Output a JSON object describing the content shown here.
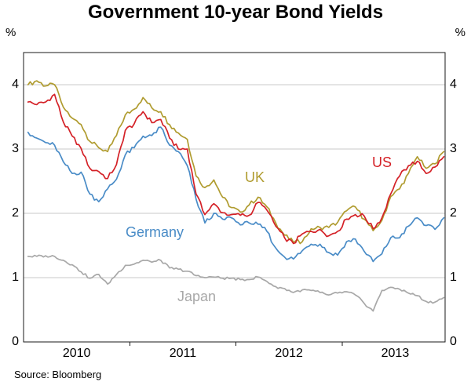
{
  "chart_data": {
    "type": "line",
    "title": "Government 10-year Bond Yields",
    "ylabel_left": "%",
    "ylabel_right": "%",
    "ylim": [
      0,
      4.5
    ],
    "yticks": [
      0,
      1,
      2,
      3,
      4
    ],
    "xlim": [
      2010.0,
      2013.97
    ],
    "xtick_labels": [
      "2010",
      "2011",
      "2012",
      "2013"
    ],
    "xtick_label_positions": [
      2010.5,
      2011.5,
      2012.5,
      2013.5
    ],
    "x_boundary_ticks": [
      2011,
      2012,
      2013
    ],
    "grid": "horizontal",
    "legend": "inline-labels",
    "source": "Source: Bloomberg",
    "x": [
      2010.042,
      2010.125,
      2010.208,
      2010.292,
      2010.375,
      2010.458,
      2010.542,
      2010.625,
      2010.708,
      2010.792,
      2010.875,
      2010.958,
      2011.042,
      2011.125,
      2011.208,
      2011.292,
      2011.375,
      2011.458,
      2011.542,
      2011.625,
      2011.708,
      2011.792,
      2011.875,
      2011.958,
      2012.042,
      2012.125,
      2012.208,
      2012.292,
      2012.375,
      2012.458,
      2012.542,
      2012.625,
      2012.708,
      2012.792,
      2012.875,
      2012.958,
      2013.042,
      2013.125,
      2013.208,
      2013.292,
      2013.375,
      2013.458,
      2013.542,
      2013.625,
      2013.708,
      2013.792,
      2013.875,
      2013.958
    ],
    "series": [
      {
        "name": "UK",
        "color": "#b09c30",
        "values": [
          4.0,
          4.06,
          3.98,
          4.0,
          3.65,
          3.48,
          3.38,
          3.12,
          3.02,
          2.96,
          3.21,
          3.53,
          3.62,
          3.8,
          3.64,
          3.58,
          3.38,
          3.25,
          3.15,
          2.58,
          2.4,
          2.52,
          2.25,
          2.09,
          2.02,
          2.13,
          2.25,
          2.1,
          1.85,
          1.66,
          1.55,
          1.56,
          1.76,
          1.78,
          1.78,
          1.86,
          2.04,
          2.1,
          1.91,
          1.73,
          1.89,
          2.26,
          2.38,
          2.62,
          2.88,
          2.7,
          2.77,
          2.96
        ]
      },
      {
        "name": "US",
        "color": "#d42127",
        "values": [
          3.73,
          3.69,
          3.73,
          3.85,
          3.42,
          3.2,
          3.01,
          2.7,
          2.65,
          2.54,
          2.76,
          3.29,
          3.39,
          3.58,
          3.41,
          3.46,
          3.17,
          3.0,
          3.0,
          2.3,
          1.98,
          2.15,
          2.01,
          1.98,
          1.97,
          1.97,
          2.17,
          2.05,
          1.8,
          1.62,
          1.53,
          1.68,
          1.72,
          1.75,
          1.65,
          1.72,
          1.91,
          1.98,
          1.96,
          1.76,
          1.93,
          2.3,
          2.58,
          2.74,
          2.81,
          2.62,
          2.72,
          2.88
        ]
      },
      {
        "name": "Germany",
        "color": "#4a8cc7",
        "values": [
          3.26,
          3.17,
          3.1,
          3.06,
          2.8,
          2.62,
          2.64,
          2.3,
          2.18,
          2.38,
          2.53,
          2.91,
          3.02,
          3.2,
          3.21,
          3.34,
          3.06,
          2.96,
          2.74,
          2.22,
          1.85,
          2.0,
          1.91,
          1.93,
          1.82,
          1.85,
          1.83,
          1.72,
          1.46,
          1.32,
          1.29,
          1.42,
          1.52,
          1.52,
          1.39,
          1.35,
          1.56,
          1.6,
          1.41,
          1.25,
          1.37,
          1.62,
          1.62,
          1.8,
          1.93,
          1.81,
          1.75,
          1.93
        ]
      },
      {
        "name": "Japan",
        "color": "#a8a8a8",
        "values": [
          1.33,
          1.33,
          1.34,
          1.33,
          1.27,
          1.2,
          1.09,
          0.99,
          1.05,
          0.9,
          1.05,
          1.19,
          1.21,
          1.27,
          1.24,
          1.27,
          1.15,
          1.13,
          1.1,
          1.03,
          1.0,
          1.01,
          0.99,
          0.99,
          0.97,
          0.97,
          1.01,
          0.94,
          0.86,
          0.83,
          0.77,
          0.81,
          0.8,
          0.77,
          0.73,
          0.76,
          0.78,
          0.73,
          0.6,
          0.48,
          0.8,
          0.85,
          0.82,
          0.76,
          0.72,
          0.63,
          0.62,
          0.69
        ]
      }
    ]
  }
}
